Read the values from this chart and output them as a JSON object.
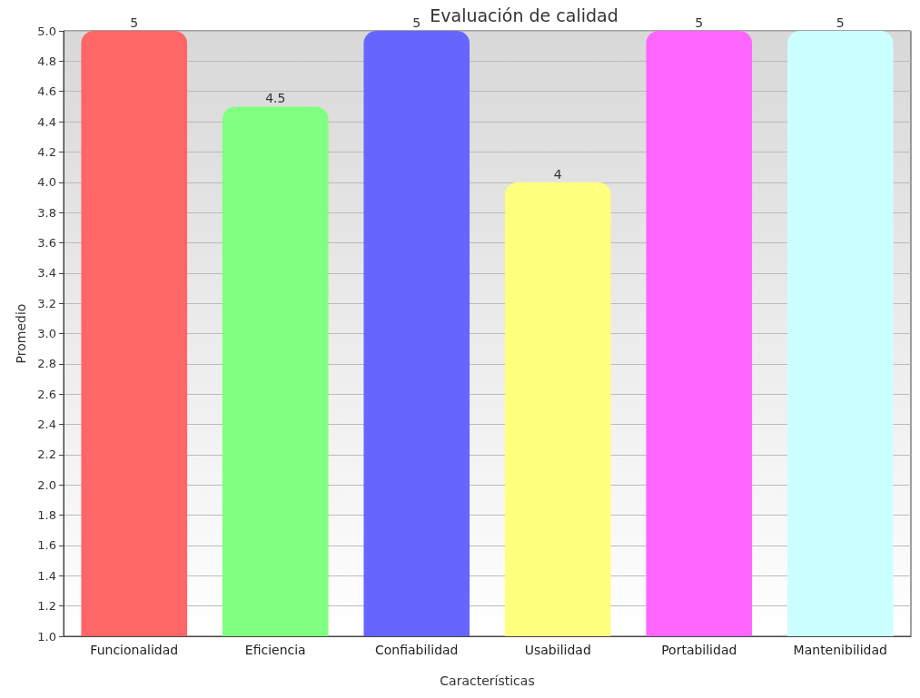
{
  "chart_data": {
    "type": "bar",
    "title": "Evaluación de calidad",
    "xlabel": "Características",
    "ylabel": "Promedio",
    "categories": [
      "Funcionalidad",
      "Eficiencia",
      "Confiabilidad",
      "Usabilidad",
      "Portabilidad",
      "Mantenibilidad"
    ],
    "values": [
      5,
      4.5,
      5,
      4,
      5,
      5
    ],
    "colors": [
      "#ff6666",
      "#80ff80",
      "#6666ff",
      "#ffff80",
      "#ff66ff",
      "#ccffff"
    ],
    "ylim": [
      1,
      5
    ],
    "yticks": [
      {
        "value": 1,
        "label": "1.0"
      },
      1.2,
      1.4,
      1.6,
      1.8,
      {
        "value": 2,
        "label": "2.0"
      },
      2.2,
      2.4,
      2.6,
      2.8,
      {
        "value": 3,
        "label": "3.0"
      },
      3.2,
      3.4,
      3.6,
      3.8,
      {
        "value": 4,
        "label": "4.0"
      },
      4.2,
      4.4,
      4.6,
      4.8,
      {
        "value": 5,
        "label": "5.0"
      }
    ],
    "grid": "y",
    "data_labels": true
  }
}
